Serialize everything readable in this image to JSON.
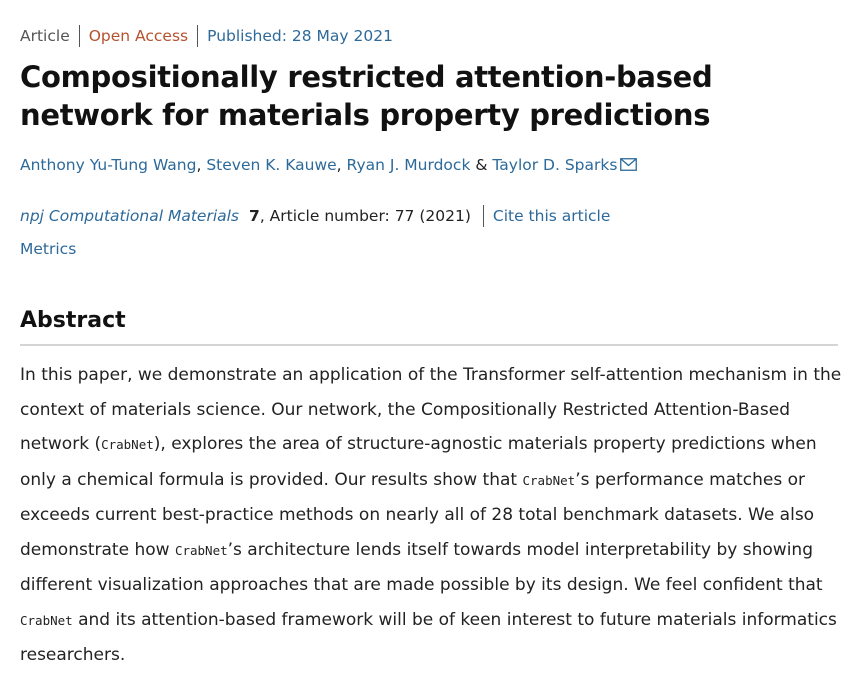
{
  "header": {
    "type": "Article",
    "access": "Open Access",
    "published": "Published: 28 May 2021"
  },
  "title": "Compositionally restricted attention-based network for materials property predictions",
  "authors": [
    "Anthony Yu-Tung Wang",
    "Steven K. Kauwe",
    "Ryan J. Murdock",
    "Taylor D. Sparks"
  ],
  "author_separators": [
    ", ",
    ", ",
    " & "
  ],
  "journal": {
    "name": "npj Computational Materials",
    "volume": "7",
    "citation": ", Article number: 77 (2021)",
    "cite_link": "Cite this article"
  },
  "metrics": "Metrics",
  "abstract": {
    "heading": "Abstract",
    "segments": [
      {
        "text": "In this paper, we demonstrate an application of the Transformer self-attention mechanism in the context of materials science. Our network, the Compositionally Restricted Attention-Based network ("
      },
      {
        "code": "CrabNet"
      },
      {
        "text": "), explores the area of structure-agnostic materials property predictions when only a chemical formula is provided. Our results show that "
      },
      {
        "code": "CrabNet"
      },
      {
        "text": "’s performance matches or exceeds current best-practice methods on nearly all of 28 total benchmark datasets. We also demonstrate how "
      },
      {
        "code": "CrabNet"
      },
      {
        "text": "’s architecture lends itself towards model interpretability by showing different visualization approaches that are made possible by its design. We feel confident that "
      },
      {
        "code": "CrabNet"
      },
      {
        "text": " and its attention-based framework will be of keen interest to future materials informatics researchers."
      }
    ]
  }
}
